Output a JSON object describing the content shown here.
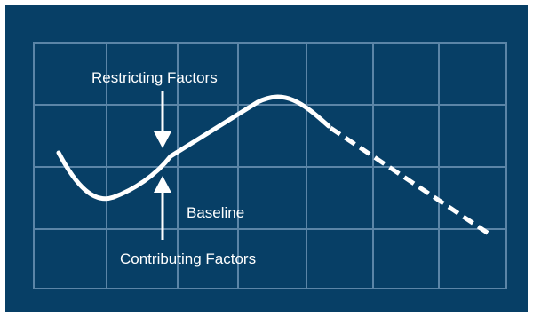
{
  "diagram": {
    "labels": {
      "restricting": "Restricting Factors",
      "baseline": "Baseline",
      "contributing": "Contributing Factors"
    },
    "colors": {
      "background": "#073f66",
      "grid": "#5b85a7",
      "line": "#ffffff"
    },
    "segments": {
      "solid": "actual trend",
      "dashed": "projected trend"
    }
  }
}
